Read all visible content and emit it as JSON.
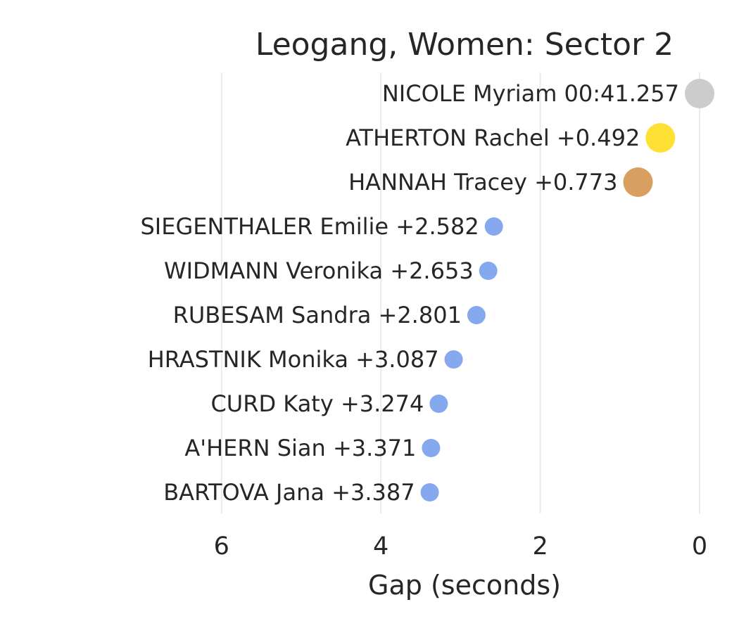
{
  "chart_data": {
    "type": "scatter",
    "title": "Leogang, Women: Sector 2",
    "xlabel": "Gap (seconds)",
    "ylabel": "",
    "xlim": [
      7,
      0
    ],
    "x_ticks": [
      6,
      4,
      2,
      0
    ],
    "grid": "vertical",
    "legend": "none",
    "points": [
      {
        "name": "NICOLE Myriam",
        "label": "NICOLE Myriam 00:41.257",
        "gap": 0.0,
        "color": "#cccccc",
        "medal": "silver"
      },
      {
        "name": "ATHERTON Rachel",
        "label": "ATHERTON Rachel +0.492",
        "gap": 0.492,
        "color": "#ffe135",
        "medal": "gold"
      },
      {
        "name": "HANNAH Tracey",
        "label": "HANNAH Tracey +0.773",
        "gap": 0.773,
        "color": "#d99f60",
        "medal": "bronze"
      },
      {
        "name": "SIEGENTHALER Emilie",
        "label": "SIEGENTHALER Emilie +2.582",
        "gap": 2.582,
        "color": "#86a8ef",
        "medal": "none"
      },
      {
        "name": "WIDMANN Veronika",
        "label": "WIDMANN Veronika +2.653",
        "gap": 2.653,
        "color": "#86a8ef",
        "medal": "none"
      },
      {
        "name": "RUBESAM Sandra",
        "label": "RUBESAM Sandra +2.801",
        "gap": 2.801,
        "color": "#86a8ef",
        "medal": "none"
      },
      {
        "name": "HRASTNIK Monika",
        "label": "HRASTNIK Monika +3.087",
        "gap": 3.087,
        "color": "#86a8ef",
        "medal": "none"
      },
      {
        "name": "CURD Katy",
        "label": "CURD Katy +3.274",
        "gap": 3.274,
        "color": "#86a8ef",
        "medal": "none"
      },
      {
        "name": "A'HERN Sian",
        "label": "A'HERN Sian +3.371",
        "gap": 3.371,
        "color": "#86a8ef",
        "medal": "none"
      },
      {
        "name": "BARTOVA Jana",
        "label": "BARTOVA Jana +3.387",
        "gap": 3.387,
        "color": "#86a8ef",
        "medal": "none"
      }
    ]
  }
}
